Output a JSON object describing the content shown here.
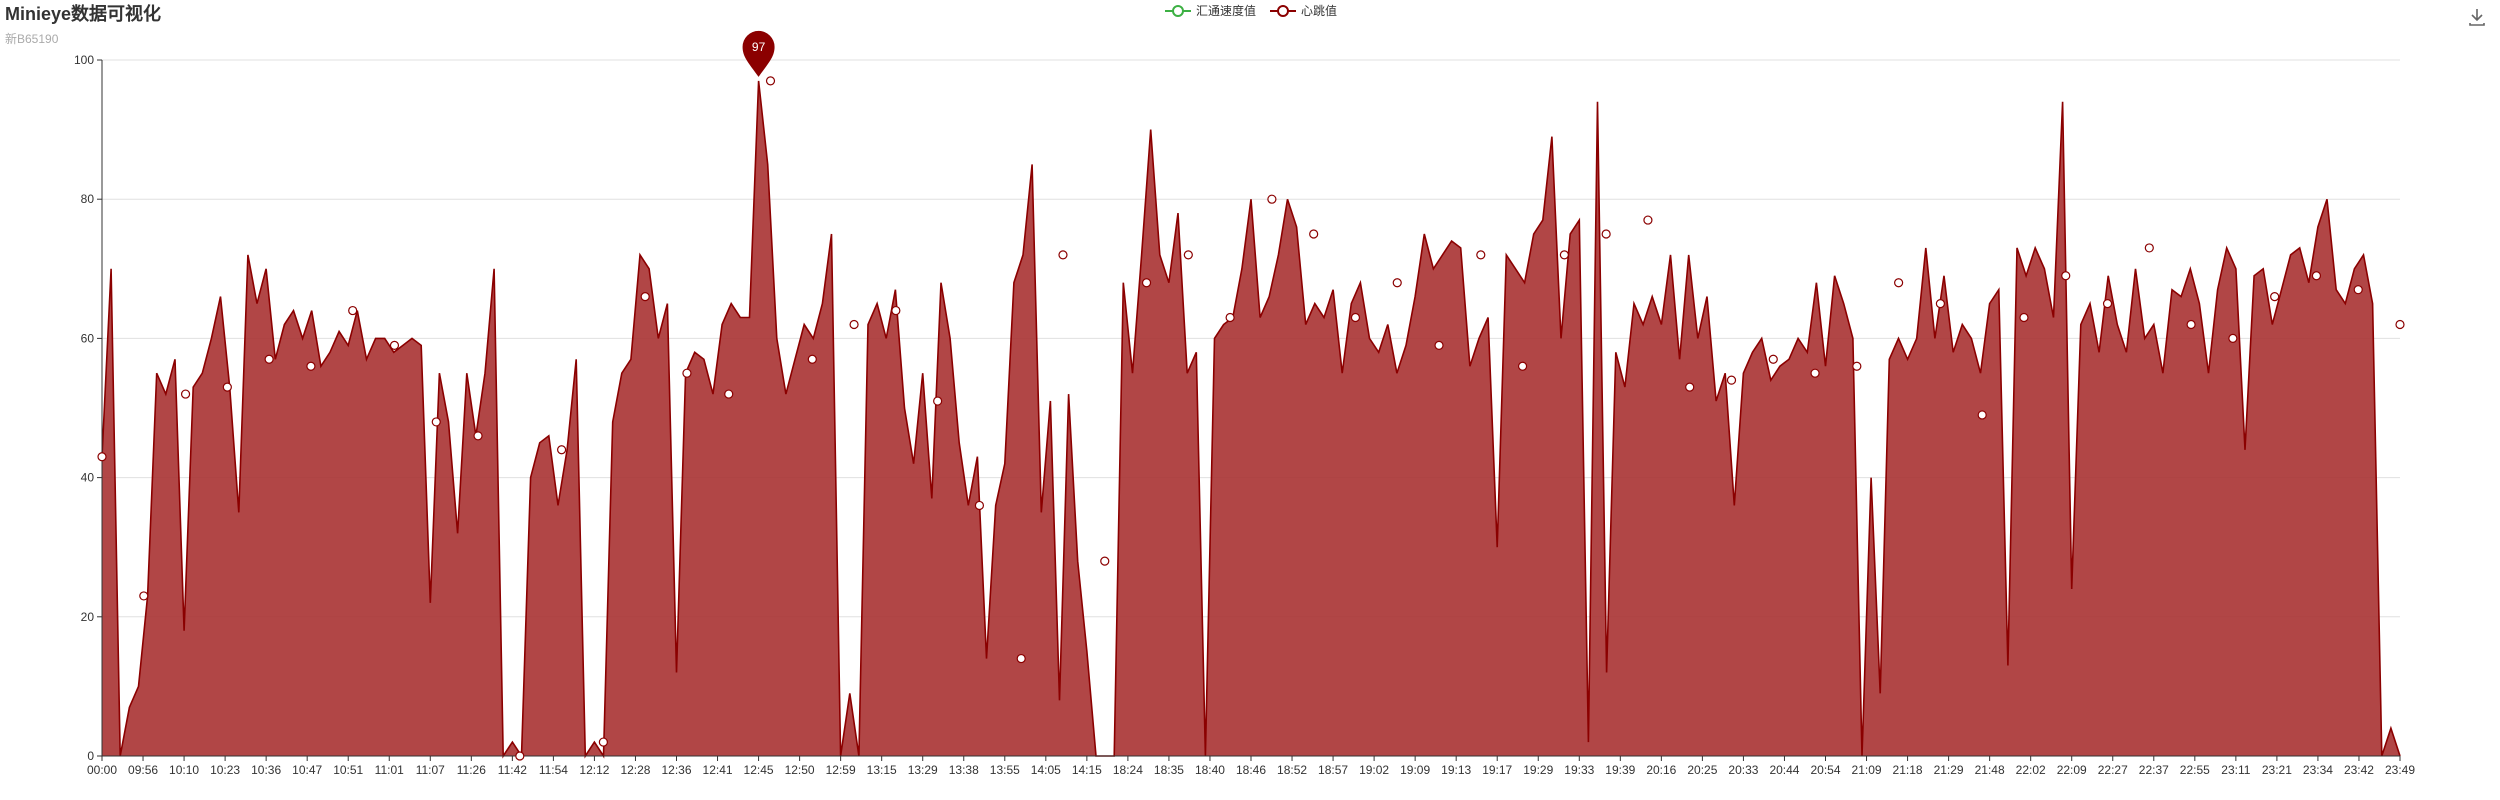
{
  "title": "Minieye数据可视化",
  "subtitle": "新B65190",
  "colors": {
    "accent": "#8b0000",
    "area_fill": "#a83232",
    "series_a": "#3cb043",
    "grid": "#e0e0e0",
    "axis": "#333333"
  },
  "legend": [
    {
      "name": "汇通速度值",
      "color": "#3cb043",
      "icon": "circle-line-icon"
    },
    {
      "name": "心跳值",
      "color": "#8b0000",
      "icon": "circle-line-icon"
    }
  ],
  "toolbox": {
    "icon": "download-icon"
  },
  "chart_data": {
    "type": "area",
    "title": "Minieye数据可视化",
    "subtitle": "新B65190",
    "ylim": [
      0,
      100
    ],
    "y_ticks": [
      "0",
      "20",
      "40",
      "60",
      "80",
      "100"
    ],
    "x_tick_labels": [
      "00:00",
      "09:56",
      "10:10",
      "10:23",
      "10:36",
      "10:47",
      "10:51",
      "11:01",
      "11:07",
      "11:26",
      "11:42",
      "11:54",
      "12:12",
      "12:28",
      "12:36",
      "12:41",
      "12:45",
      "12:50",
      "12:59",
      "13:15",
      "13:29",
      "13:38",
      "13:55",
      "14:05",
      "14:15",
      "18:24",
      "18:35",
      "18:40",
      "18:46",
      "18:52",
      "18:57",
      "19:02",
      "19:09",
      "19:13",
      "19:17",
      "19:29",
      "19:33",
      "19:39",
      "20:16",
      "20:25",
      "20:33",
      "20:44",
      "20:54",
      "21:09",
      "21:18",
      "21:29",
      "21:48",
      "22:02",
      "22:09",
      "22:27",
      "22:37",
      "22:55",
      "23:11",
      "23:21",
      "23:34",
      "23:42",
      "23:49"
    ],
    "grid": true,
    "legend_position": "top-center",
    "series": [
      {
        "name": "汇通速度值",
        "values": []
      },
      {
        "name": "心跳值",
        "values": [
          43,
          70,
          0,
          7,
          10,
          23,
          55,
          52,
          57,
          18,
          53,
          55,
          60,
          66,
          53,
          35,
          72,
          65,
          70,
          57,
          62,
          64,
          60,
          64,
          56,
          58,
          61,
          59,
          64,
          57,
          60,
          60,
          58,
          59,
          60,
          59,
          22,
          55,
          48,
          32,
          55,
          46,
          55,
          70,
          0,
          2,
          0,
          40,
          45,
          46,
          36,
          44,
          57,
          0,
          2,
          0,
          48,
          55,
          57,
          72,
          70,
          60,
          65,
          12,
          55,
          58,
          57,
          52,
          62,
          65,
          63,
          63,
          97,
          85,
          60,
          52,
          57,
          62,
          60,
          65,
          75,
          0,
          9,
          0,
          62,
          65,
          60,
          67,
          50,
          42,
          55,
          37,
          68,
          60,
          45,
          36,
          43,
          14,
          36,
          42,
          68,
          72,
          85,
          35,
          51,
          8,
          52,
          28,
          15,
          0,
          0,
          0,
          68,
          55,
          72,
          90,
          72,
          68,
          78,
          55,
          58,
          0,
          60,
          62,
          63,
          70,
          80,
          63,
          66,
          72,
          80,
          76,
          62,
          65,
          63,
          67,
          55,
          65,
          68,
          60,
          58,
          62,
          55,
          59,
          66,
          75,
          70,
          72,
          74,
          73,
          56,
          60,
          63,
          30,
          72,
          70,
          68,
          75,
          77,
          89,
          60,
          75,
          77,
          2,
          94,
          12,
          58,
          53,
          65,
          62,
          66,
          62,
          72,
          57,
          72,
          60,
          66,
          51,
          55,
          36,
          55,
          58,
          60,
          54,
          56,
          57,
          60,
          58,
          68,
          56,
          69,
          65,
          60,
          0,
          40,
          9,
          57,
          60,
          57,
          60,
          73,
          60,
          69,
          58,
          62,
          60,
          55,
          65,
          67,
          13,
          73,
          69,
          73,
          70,
          63,
          94,
          24,
          62,
          65,
          58,
          69,
          62,
          58,
          70,
          60,
          62,
          55,
          67,
          66,
          70,
          65,
          55,
          67,
          73,
          70,
          44,
          69,
          70,
          62,
          67,
          72,
          73,
          68,
          76,
          80,
          67,
          65,
          70,
          72,
          65,
          0,
          4,
          0
        ]
      },
      {
        "name": "心跳值-markers",
        "values": []
      }
    ],
    "max_point": {
      "series": "心跳值",
      "label": "97",
      "x": "12:45",
      "value": 97
    },
    "marker_values": [
      43,
      23,
      52,
      53,
      57,
      56,
      64,
      59,
      48,
      46,
      0,
      44,
      2,
      66,
      55,
      52,
      97,
      57,
      62,
      64,
      51,
      36,
      14,
      72,
      28,
      68,
      72,
      63,
      80,
      75,
      63,
      68,
      59,
      72,
      56,
      72,
      75,
      77,
      53,
      54,
      57,
      55,
      56,
      68,
      65,
      49,
      63,
      69,
      65,
      73,
      62,
      60,
      66,
      69,
      67,
      62
    ]
  }
}
